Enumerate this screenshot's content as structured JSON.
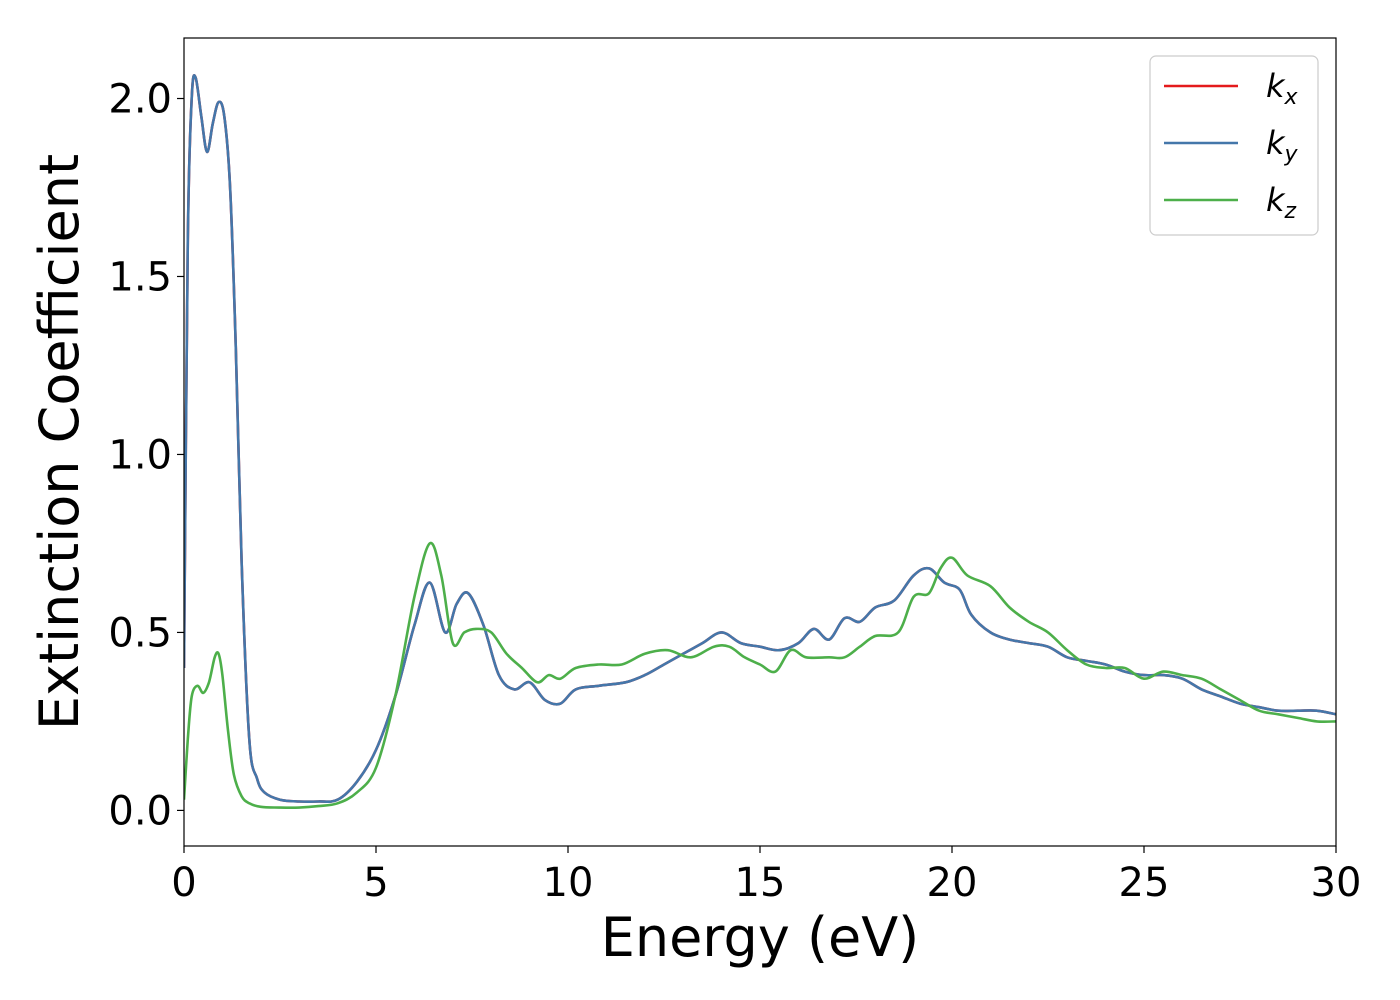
{
  "chart_data": {
    "type": "line",
    "title": "",
    "xlabel": "Energy (eV)",
    "ylabel": "Extinction Coefficient",
    "xlim": [
      0,
      30
    ],
    "ylim": [
      -0.1,
      2.17
    ],
    "xticks": [
      0,
      5,
      10,
      15,
      20,
      25,
      30
    ],
    "xtick_labels": [
      "0",
      "5",
      "10",
      "15",
      "20",
      "25",
      "30"
    ],
    "yticks": [
      0.0,
      0.5,
      1.0,
      1.5,
      2.0
    ],
    "ytick_labels": [
      "0.0",
      "0.5",
      "1.0",
      "1.5",
      "2.0"
    ],
    "grid": false,
    "legend_placement": "top-right",
    "series": [
      {
        "name": "kx",
        "label_base": "k",
        "label_sub": "x",
        "color": "#e41a1c",
        "x": [
          0,
          0.1,
          0.2,
          0.3,
          0.45,
          0.6,
          0.75,
          0.9,
          1.05,
          1.2,
          1.35,
          1.5,
          1.7,
          1.9,
          2.1,
          2.5,
          3.0,
          3.5,
          4.0,
          4.5,
          5.0,
          5.5,
          6.0,
          6.4,
          6.8,
          7.1,
          7.4,
          7.8,
          8.2,
          8.6,
          9.0,
          9.4,
          9.8,
          10.2,
          10.8,
          11.5,
          12.0,
          12.5,
          13.0,
          13.5,
          14.0,
          14.5,
          15.0,
          15.5,
          16.0,
          16.4,
          16.8,
          17.2,
          17.6,
          18.0,
          18.5,
          19.0,
          19.4,
          19.8,
          20.2,
          20.5,
          21.0,
          21.5,
          22.0,
          22.5,
          23.0,
          23.5,
          24.0,
          24.5,
          25.0,
          25.5,
          26.0,
          26.5,
          27.0,
          27.5,
          28.0,
          28.5,
          29.0,
          29.5,
          30.0
        ],
        "y": [
          0.4,
          1.6,
          2.0,
          2.06,
          1.95,
          1.85,
          1.93,
          1.99,
          1.95,
          1.75,
          1.3,
          0.7,
          0.2,
          0.09,
          0.05,
          0.03,
          0.025,
          0.025,
          0.03,
          0.08,
          0.17,
          0.32,
          0.52,
          0.64,
          0.5,
          0.58,
          0.61,
          0.52,
          0.38,
          0.34,
          0.36,
          0.31,
          0.3,
          0.34,
          0.35,
          0.36,
          0.38,
          0.41,
          0.44,
          0.47,
          0.5,
          0.47,
          0.46,
          0.45,
          0.47,
          0.51,
          0.48,
          0.54,
          0.53,
          0.57,
          0.59,
          0.66,
          0.68,
          0.64,
          0.62,
          0.55,
          0.5,
          0.48,
          0.47,
          0.46,
          0.43,
          0.42,
          0.41,
          0.39,
          0.38,
          0.38,
          0.37,
          0.34,
          0.32,
          0.3,
          0.29,
          0.28,
          0.28,
          0.28,
          0.27
        ]
      },
      {
        "name": "ky",
        "label_base": "k",
        "label_sub": "y",
        "color": "#4477aa",
        "x": [
          0,
          0.1,
          0.2,
          0.3,
          0.45,
          0.6,
          0.75,
          0.9,
          1.05,
          1.2,
          1.35,
          1.5,
          1.7,
          1.9,
          2.1,
          2.5,
          3.0,
          3.5,
          4.0,
          4.5,
          5.0,
          5.5,
          6.0,
          6.4,
          6.8,
          7.1,
          7.4,
          7.8,
          8.2,
          8.6,
          9.0,
          9.4,
          9.8,
          10.2,
          10.8,
          11.5,
          12.0,
          12.5,
          13.0,
          13.5,
          14.0,
          14.5,
          15.0,
          15.5,
          16.0,
          16.4,
          16.8,
          17.2,
          17.6,
          18.0,
          18.5,
          19.0,
          19.4,
          19.8,
          20.2,
          20.5,
          21.0,
          21.5,
          22.0,
          22.5,
          23.0,
          23.5,
          24.0,
          24.5,
          25.0,
          25.5,
          26.0,
          26.5,
          27.0,
          27.5,
          28.0,
          28.5,
          29.0,
          29.5,
          30.0
        ],
        "y": [
          0.4,
          1.6,
          2.0,
          2.06,
          1.95,
          1.85,
          1.93,
          1.99,
          1.95,
          1.75,
          1.3,
          0.7,
          0.2,
          0.09,
          0.05,
          0.03,
          0.025,
          0.025,
          0.03,
          0.08,
          0.17,
          0.32,
          0.52,
          0.64,
          0.5,
          0.58,
          0.61,
          0.52,
          0.38,
          0.34,
          0.36,
          0.31,
          0.3,
          0.34,
          0.35,
          0.36,
          0.38,
          0.41,
          0.44,
          0.47,
          0.5,
          0.47,
          0.46,
          0.45,
          0.47,
          0.51,
          0.48,
          0.54,
          0.53,
          0.57,
          0.59,
          0.66,
          0.68,
          0.64,
          0.62,
          0.55,
          0.5,
          0.48,
          0.47,
          0.46,
          0.43,
          0.42,
          0.41,
          0.39,
          0.38,
          0.38,
          0.37,
          0.34,
          0.32,
          0.3,
          0.29,
          0.28,
          0.28,
          0.28,
          0.27
        ]
      },
      {
        "name": "kz",
        "label_base": "k",
        "label_sub": "z",
        "color": "#4daf4a",
        "x": [
          0,
          0.1,
          0.2,
          0.35,
          0.5,
          0.65,
          0.8,
          0.9,
          1.0,
          1.15,
          1.3,
          1.5,
          1.7,
          2.0,
          2.5,
          3.0,
          3.5,
          4.0,
          4.5,
          5.0,
          5.5,
          6.0,
          6.4,
          6.7,
          7.0,
          7.3,
          7.6,
          8.0,
          8.4,
          8.8,
          9.2,
          9.5,
          9.8,
          10.2,
          10.8,
          11.4,
          12.0,
          12.6,
          13.2,
          13.8,
          14.2,
          14.6,
          15.0,
          15.4,
          15.8,
          16.2,
          16.8,
          17.2,
          17.6,
          18.0,
          18.6,
          19.0,
          19.4,
          19.7,
          20.0,
          20.4,
          21.0,
          21.5,
          22.0,
          22.5,
          23.0,
          23.5,
          24.0,
          24.5,
          25.0,
          25.5,
          26.0,
          26.5,
          27.0,
          27.5,
          28.0,
          28.5,
          29.0,
          29.5,
          30.0
        ],
        "y": [
          0.03,
          0.2,
          0.32,
          0.35,
          0.33,
          0.36,
          0.43,
          0.44,
          0.38,
          0.22,
          0.1,
          0.04,
          0.02,
          0.01,
          0.008,
          0.008,
          0.012,
          0.02,
          0.05,
          0.12,
          0.32,
          0.6,
          0.75,
          0.66,
          0.47,
          0.5,
          0.51,
          0.5,
          0.44,
          0.4,
          0.36,
          0.38,
          0.37,
          0.4,
          0.41,
          0.41,
          0.44,
          0.45,
          0.43,
          0.46,
          0.46,
          0.43,
          0.41,
          0.39,
          0.45,
          0.43,
          0.43,
          0.43,
          0.46,
          0.49,
          0.5,
          0.6,
          0.61,
          0.68,
          0.71,
          0.66,
          0.63,
          0.57,
          0.53,
          0.5,
          0.45,
          0.41,
          0.4,
          0.4,
          0.37,
          0.39,
          0.38,
          0.37,
          0.34,
          0.31,
          0.28,
          0.27,
          0.26,
          0.25,
          0.25
        ]
      }
    ]
  }
}
